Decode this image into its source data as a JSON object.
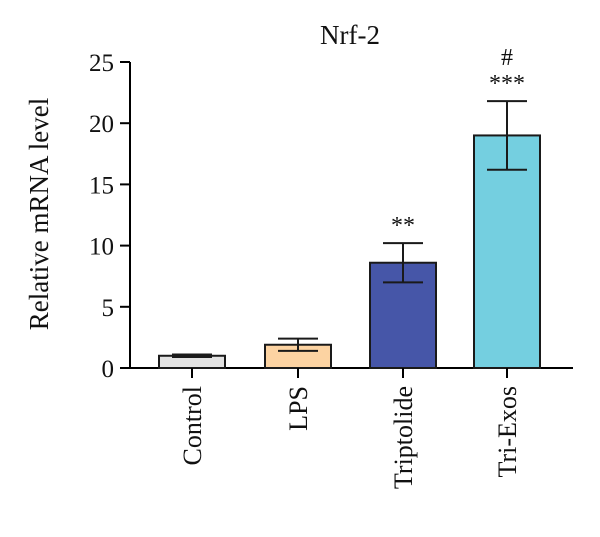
{
  "chart_data": {
    "type": "bar",
    "title": "Nrf-2",
    "xlabel": "",
    "ylabel": "Relative mRNA level",
    "ylim": [
      0,
      25
    ],
    "yticks": [
      0,
      5,
      10,
      15,
      20,
      25
    ],
    "grid": false,
    "categories": [
      "Control",
      "LPS",
      "Triptolide",
      "Tri-Exos"
    ],
    "values": [
      1.0,
      1.9,
      8.6,
      19.0
    ],
    "errors": [
      0.1,
      0.5,
      1.6,
      2.8
    ],
    "bar_colors": [
      "#e2e2e2",
      "#fcd3a2",
      "#4656a8",
      "#74cfe0"
    ],
    "annotations": [
      [],
      [],
      [
        "**"
      ],
      [
        "***",
        "#"
      ]
    ]
  }
}
